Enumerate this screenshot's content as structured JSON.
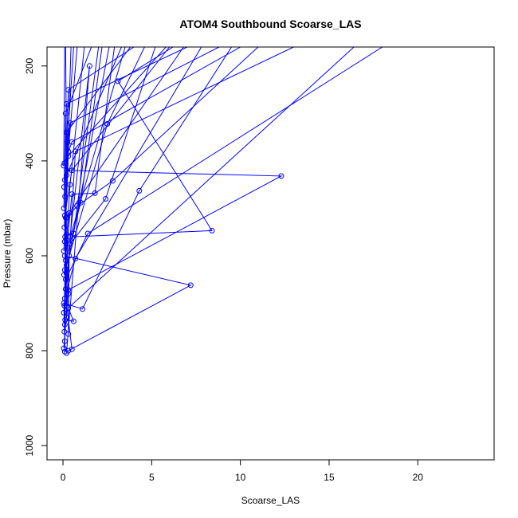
{
  "chart_data": {
    "type": "line",
    "title": "ATOM4 Southbound Scoarse_LAS",
    "xlabel": "Scoarse_LAS",
    "ylabel": "Pressure (mbar)",
    "xlim": [
      -0.9,
      24.3
    ],
    "ylim": [
      1030,
      160
    ],
    "y_axis_inverted": true,
    "x_ticks": [
      0,
      5,
      10,
      15,
      20
    ],
    "y_ticks": [
      200,
      400,
      600,
      800,
      1000
    ],
    "grid": false,
    "legend": "none",
    "series_color": "#0000ff",
    "marker": "open-circle",
    "series": [
      {
        "points": [
          [
            0.3,
            800
          ],
          [
            7.2,
            662
          ],
          [
            0.1,
            600
          ],
          [
            3.5,
            160
          ]
        ]
      },
      {
        "points": [
          [
            0.2,
            805
          ],
          [
            1.5,
            200
          ],
          [
            0.4,
            560
          ],
          [
            8.4,
            547
          ],
          [
            3.1,
            232
          ],
          [
            6.2,
            160
          ]
        ]
      },
      {
        "points": [
          [
            0.05,
            795
          ],
          [
            0.3,
            672
          ],
          [
            12.3,
            432
          ],
          [
            0.2,
            420
          ],
          [
            0.15,
            160
          ]
        ]
      },
      {
        "points": [
          [
            0.1,
            780
          ],
          [
            0.05,
            700
          ],
          [
            1.1,
            712
          ],
          [
            4.3,
            463
          ],
          [
            9.5,
            160
          ]
        ]
      },
      {
        "points": [
          [
            0.08,
            760
          ],
          [
            0.15,
            650
          ],
          [
            1.4,
            553
          ],
          [
            18.0,
            160
          ]
        ]
      },
      {
        "points": [
          [
            0.1,
            745
          ],
          [
            0.2,
            520
          ],
          [
            0.8,
            495
          ],
          [
            2.8,
            442
          ],
          [
            11.0,
            160
          ]
        ]
      },
      {
        "points": [
          [
            0.12,
            735
          ],
          [
            0.6,
            738
          ],
          [
            0.3,
            710
          ],
          [
            16.4,
            160
          ]
        ]
      },
      {
        "points": [
          [
            0.05,
            720
          ],
          [
            0.4,
            575
          ],
          [
            2.4,
            480
          ],
          [
            5.2,
            160
          ]
        ]
      },
      {
        "points": [
          [
            0.1,
            690
          ],
          [
            0.7,
            606
          ],
          [
            7.8,
            160
          ]
        ]
      },
      {
        "points": [
          [
            0.3,
            680
          ],
          [
            0.2,
            620
          ],
          [
            2.5,
            322
          ],
          [
            4.6,
            160
          ]
        ]
      },
      {
        "points": [
          [
            0.06,
            640
          ],
          [
            0.5,
            470
          ],
          [
            1.8,
            468
          ],
          [
            2.9,
            160
          ]
        ]
      },
      {
        "points": [
          [
            0.1,
            630
          ],
          [
            0.4,
            450
          ],
          [
            1.2,
            160
          ]
        ]
      },
      {
        "points": [
          [
            0.15,
            610
          ],
          [
            1.0,
            488
          ],
          [
            2.2,
            160
          ]
        ]
      },
      {
        "points": [
          [
            0.05,
            590
          ],
          [
            0.3,
            380
          ],
          [
            0.8,
            160
          ]
        ]
      },
      {
        "points": [
          [
            0.1,
            570
          ],
          [
            0.25,
            360
          ],
          [
            0.6,
            160
          ]
        ]
      },
      {
        "points": [
          [
            0.2,
            555
          ],
          [
            0.6,
            553
          ],
          [
            2.0,
            160
          ]
        ]
      },
      {
        "points": [
          [
            0.08,
            540
          ],
          [
            0.2,
            340
          ],
          [
            3.8,
            160
          ]
        ]
      },
      {
        "points": [
          [
            0.1,
            515
          ],
          [
            0.5,
            420
          ],
          [
            6.0,
            160
          ]
        ]
      },
      {
        "points": [
          [
            0.05,
            500
          ],
          [
            0.15,
            300
          ],
          [
            1.6,
            160
          ]
        ]
      },
      {
        "points": [
          [
            0.12,
            475
          ],
          [
            0.3,
            250
          ],
          [
            4.0,
            160
          ]
        ]
      },
      {
        "points": [
          [
            0.06,
            455
          ],
          [
            0.2,
            280
          ],
          [
            7.0,
            160
          ]
        ]
      },
      {
        "points": [
          [
            0.1,
            440
          ],
          [
            0.4,
            320
          ],
          [
            8.8,
            160
          ]
        ]
      },
      {
        "points": [
          [
            0.08,
            405
          ],
          [
            0.5,
            360
          ],
          [
            10.0,
            160
          ]
        ]
      },
      {
        "points": [
          [
            0.04,
            410
          ],
          [
            0.1,
            160
          ]
        ]
      },
      {
        "points": [
          [
            0.2,
            730
          ],
          [
            0.15,
            520
          ],
          [
            0.45,
            160
          ]
        ]
      },
      {
        "points": [
          [
            0.3,
            765
          ],
          [
            0.35,
            600
          ],
          [
            2.6,
            160
          ]
        ]
      },
      {
        "points": [
          [
            0.1,
            802
          ],
          [
            0.12,
            560
          ],
          [
            0.3,
            390
          ],
          [
            5.8,
            160
          ]
        ]
      },
      {
        "points": [
          [
            0.5,
            797
          ],
          [
            0.2,
            700
          ],
          [
            0.7,
            380
          ],
          [
            13.0,
            160
          ]
        ]
      },
      {
        "points": [
          [
            0.08,
            705
          ],
          [
            0.2,
            430
          ],
          [
            3.3,
            160
          ]
        ]
      },
      {
        "points": [
          [
            0.15,
            670
          ],
          [
            0.35,
            510
          ],
          [
            6.8,
            160
          ]
        ]
      }
    ]
  }
}
